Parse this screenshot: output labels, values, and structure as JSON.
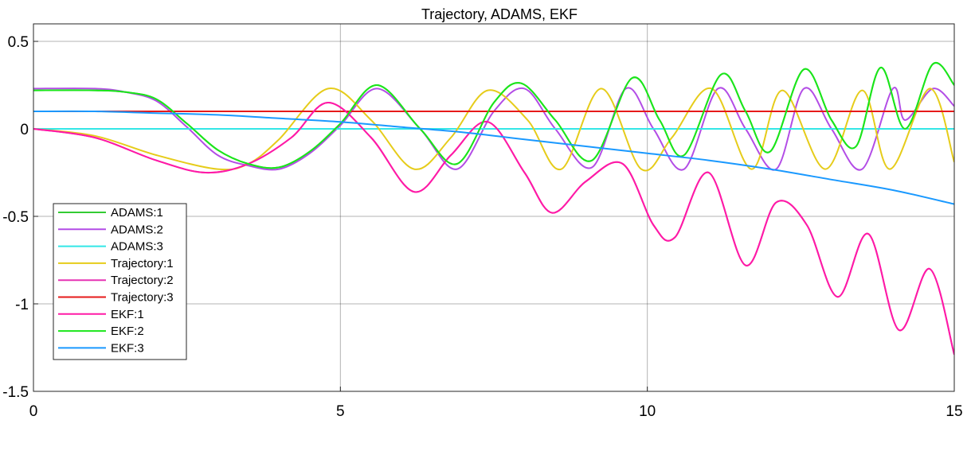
{
  "chart_data": {
    "type": "line",
    "title": "Trajectory, ADAMS, EKF",
    "xlabel": "",
    "ylabel": "",
    "xlim": [
      0,
      15
    ],
    "ylim": [
      -1.5,
      0.6
    ],
    "xticks": [
      0,
      5,
      10,
      15
    ],
    "xtick_labels": [
      "0",
      "5",
      "10",
      "15"
    ],
    "yticks": [
      0.5,
      0,
      -0.5,
      -1,
      -1.5
    ],
    "ytick_labels": [
      "0.5",
      "0",
      "-0.5",
      "-1",
      "-1.5"
    ],
    "grid": true,
    "legend_position": "lower-left",
    "series": [
      {
        "name": "ADAMS:1",
        "color": "#33cc33",
        "x": [
          0,
          1,
          1.5,
          2,
          2.5,
          3,
          3.5,
          4,
          4.5,
          5,
          5.6,
          6.3,
          6.9,
          7.5,
          7.95,
          8.5,
          9.1,
          9.75,
          10.2,
          10.6,
          11.2,
          11.6,
          12,
          12.55,
          13,
          13.4,
          13.8,
          14.2,
          14.65,
          15
        ],
        "y": [
          0.22,
          0.22,
          0.21,
          0.17,
          0.03,
          -0.12,
          -0.2,
          -0.22,
          -0.13,
          0.03,
          0.25,
          0.0,
          -0.2,
          0.15,
          0.26,
          0.05,
          -0.18,
          0.29,
          0.05,
          -0.15,
          0.31,
          0.1,
          -0.13,
          0.34,
          0.05,
          -0.1,
          0.35,
          0.0,
          0.37,
          0.25
        ]
      },
      {
        "name": "ADAMS:2",
        "color": "#b34de6",
        "x": [
          0,
          1,
          1.5,
          2,
          2.5,
          3,
          3.5,
          4,
          4.5,
          5,
          5.6,
          6.3,
          6.9,
          7.5,
          8.0,
          8.5,
          9.1,
          9.65,
          10.1,
          10.6,
          11.15,
          11.6,
          12.1,
          12.55,
          13,
          13.5,
          14.0,
          14.2,
          14.65,
          15
        ],
        "y": [
          0.23,
          0.23,
          0.21,
          0.16,
          0.01,
          -0.15,
          -0.21,
          -0.23,
          -0.14,
          0.02,
          0.23,
          0.0,
          -0.23,
          0.1,
          0.23,
          0.0,
          -0.22,
          0.23,
          0.0,
          -0.23,
          0.23,
          0.0,
          -0.23,
          0.23,
          0.0,
          -0.23,
          0.23,
          0.05,
          0.23,
          0.13
        ]
      },
      {
        "name": "ADAMS:3",
        "color": "#33e6e6",
        "x": [
          0,
          15
        ],
        "y": [
          0,
          0
        ]
      },
      {
        "name": "Trajectory:1",
        "color": "#e6cc1a",
        "x": [
          0,
          1,
          2,
          3,
          3.5,
          4,
          4.8,
          5.5,
          6.2,
          6.8,
          7.4,
          8.05,
          8.6,
          9.25,
          9.9,
          10.4,
          11.05,
          11.7,
          12.2,
          12.9,
          13.5,
          13.95,
          14.6,
          15
        ],
        "y": [
          0,
          -0.04,
          -0.15,
          -0.23,
          -0.2,
          -0.06,
          0.23,
          0.05,
          -0.23,
          -0.05,
          0.22,
          0.05,
          -0.23,
          0.23,
          -0.23,
          -0.05,
          0.23,
          -0.23,
          0.22,
          -0.23,
          0.22,
          -0.23,
          0.23,
          -0.19
        ]
      },
      {
        "name": "Trajectory:2",
        "color": "#e633b3",
        "x": [
          0,
          1,
          2,
          2.8,
          3.5,
          4.2,
          4.8,
          5.5,
          6.2,
          6.8,
          7.4,
          8.0,
          8.45,
          9.0,
          9.6,
          10.1,
          10.45,
          11.0,
          11.6,
          12.1,
          12.6,
          13.1,
          13.6,
          14.1,
          14.6,
          15
        ],
        "y": [
          0,
          -0.05,
          -0.18,
          -0.25,
          -0.2,
          -0.05,
          0.15,
          -0.05,
          -0.36,
          -0.15,
          0.04,
          -0.25,
          -0.48,
          -0.3,
          -0.2,
          -0.55,
          -0.62,
          -0.25,
          -0.78,
          -0.42,
          -0.55,
          -0.96,
          -0.6,
          -1.15,
          -0.8,
          -1.29
        ]
      },
      {
        "name": "Trajectory:3",
        "color": "#e61a1a",
        "x": [
          0,
          15
        ],
        "y": [
          0.1,
          0.1
        ]
      },
      {
        "name": "EKF:1",
        "color": "#ff1aa6",
        "x": [
          0,
          1,
          2,
          2.8,
          3.5,
          4.2,
          4.8,
          5.5,
          6.2,
          6.8,
          7.4,
          8.0,
          8.45,
          9.0,
          9.6,
          10.1,
          10.45,
          11.0,
          11.6,
          12.1,
          12.6,
          13.1,
          13.6,
          14.1,
          14.6,
          15
        ],
        "y": [
          0,
          -0.05,
          -0.18,
          -0.25,
          -0.2,
          -0.05,
          0.15,
          -0.05,
          -0.36,
          -0.15,
          0.04,
          -0.25,
          -0.48,
          -0.3,
          -0.2,
          -0.55,
          -0.62,
          -0.25,
          -0.78,
          -0.42,
          -0.55,
          -0.96,
          -0.6,
          -1.15,
          -0.8,
          -1.29
        ]
      },
      {
        "name": "EKF:2",
        "color": "#1ae61a",
        "x": [
          0,
          1,
          1.5,
          2,
          2.5,
          3,
          3.5,
          4,
          4.5,
          5,
          5.6,
          6.3,
          6.9,
          7.5,
          7.95,
          8.5,
          9.1,
          9.75,
          10.2,
          10.6,
          11.2,
          11.6,
          12,
          12.55,
          13,
          13.4,
          13.8,
          14.2,
          14.65,
          15
        ],
        "y": [
          0.22,
          0.22,
          0.21,
          0.17,
          0.03,
          -0.12,
          -0.2,
          -0.22,
          -0.13,
          0.03,
          0.25,
          0.0,
          -0.2,
          0.15,
          0.26,
          0.05,
          -0.18,
          0.29,
          0.05,
          -0.15,
          0.31,
          0.1,
          -0.13,
          0.34,
          0.05,
          -0.1,
          0.35,
          0.0,
          0.37,
          0.25
        ]
      },
      {
        "name": "EKF:3",
        "color": "#1a99ff",
        "x": [
          0,
          1,
          2,
          3,
          4,
          5,
          6,
          7,
          8,
          9,
          10,
          11,
          12,
          13,
          14,
          15
        ],
        "y": [
          0.1,
          0.1,
          0.09,
          0.08,
          0.06,
          0.04,
          0.01,
          -0.02,
          -0.06,
          -0.1,
          -0.14,
          -0.18,
          -0.23,
          -0.29,
          -0.35,
          -0.43
        ]
      }
    ]
  }
}
